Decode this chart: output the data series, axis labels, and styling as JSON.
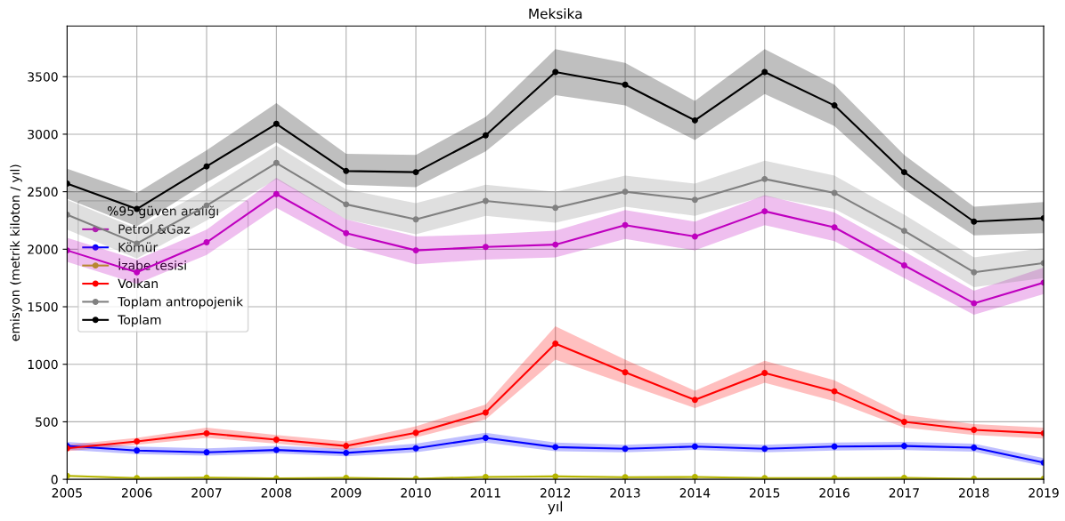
{
  "chart_data": {
    "type": "line",
    "title": "Meksika",
    "xlabel": "yıl",
    "ylabel": "emisyon (metrik kiloton / yıl)",
    "legend_title": "%95 güven aralığı",
    "x": [
      2005,
      2006,
      2007,
      2008,
      2009,
      2010,
      2011,
      2012,
      2013,
      2014,
      2015,
      2016,
      2017,
      2018,
      2019
    ],
    "series": [
      {
        "name": "Petrol &Gaz",
        "color": "#bf00bf",
        "values": [
          1990,
          1800,
          2060,
          2480,
          2140,
          1990,
          2020,
          2040,
          2210,
          2110,
          2330,
          2190,
          1860,
          1530,
          1710
        ],
        "lower": [
          1890,
          1700,
          1950,
          2360,
          2030,
          1870,
          1910,
          1930,
          2090,
          1990,
          2210,
          2070,
          1750,
          1430,
          1610
        ],
        "upper": [
          2100,
          1910,
          2170,
          2620,
          2260,
          2110,
          2130,
          2160,
          2340,
          2240,
          2470,
          2320,
          1980,
          1640,
          1840
        ]
      },
      {
        "name": "Kömür",
        "color": "#0000ff",
        "values": [
          290,
          250,
          235,
          255,
          230,
          270,
          360,
          280,
          265,
          285,
          265,
          285,
          290,
          275,
          145
        ],
        "lower": [
          255,
          220,
          205,
          225,
          200,
          235,
          320,
          245,
          235,
          255,
          235,
          250,
          255,
          240,
          115
        ],
        "upper": [
          325,
          285,
          270,
          290,
          265,
          310,
          405,
          320,
          300,
          320,
          300,
          320,
          325,
          310,
          185
        ]
      },
      {
        "name": "İzabe tesisi",
        "color": "#b5b500",
        "values": [
          30,
          10,
          15,
          8,
          12,
          5,
          20,
          25,
          18,
          20,
          10,
          10,
          12,
          5,
          5
        ],
        "lower": [
          22,
          4,
          8,
          2,
          5,
          0,
          12,
          17,
          10,
          12,
          4,
          4,
          5,
          0,
          0
        ],
        "upper": [
          40,
          18,
          24,
          15,
          20,
          12,
          30,
          35,
          27,
          30,
          18,
          18,
          20,
          12,
          12
        ]
      },
      {
        "name": "Volkan",
        "color": "#ff0000",
        "values": [
          270,
          330,
          400,
          345,
          290,
          405,
          580,
          1180,
          930,
          690,
          925,
          765,
          500,
          430,
          400
        ],
        "lower": [
          245,
          300,
          360,
          310,
          255,
          365,
          520,
          1040,
          830,
          620,
          840,
          680,
          450,
          385,
          355
        ],
        "upper": [
          300,
          360,
          450,
          385,
          330,
          460,
          650,
          1330,
          1040,
          770,
          1030,
          860,
          560,
          480,
          450
        ]
      },
      {
        "name": "Toplam antropojenik",
        "color": "#808080",
        "values": [
          2300,
          2050,
          2380,
          2750,
          2390,
          2260,
          2420,
          2360,
          2500,
          2430,
          2610,
          2490,
          2160,
          1800,
          1880
        ],
        "lower": [
          2170,
          1920,
          2250,
          2610,
          2260,
          2130,
          2290,
          2230,
          2370,
          2290,
          2460,
          2350,
          2030,
          1670,
          1750
        ],
        "upper": [
          2430,
          2180,
          2520,
          2900,
          2520,
          2400,
          2560,
          2500,
          2640,
          2570,
          2770,
          2640,
          2300,
          1930,
          2010
        ]
      },
      {
        "name": "Toplam",
        "color": "#000000",
        "values": [
          2570,
          2350,
          2720,
          3090,
          2680,
          2670,
          2990,
          3540,
          3430,
          3120,
          3540,
          3250,
          2670,
          2240,
          2270
        ],
        "lower": [
          2440,
          2200,
          2580,
          2930,
          2560,
          2540,
          2850,
          3340,
          3250,
          2950,
          3350,
          3070,
          2520,
          2120,
          2140
        ],
        "upper": [
          2700,
          2490,
          2860,
          3270,
          2830,
          2820,
          3150,
          3740,
          3620,
          3290,
          3740,
          3430,
          2820,
          2370,
          2410
        ]
      }
    ],
    "xlim": [
      2005,
      2019
    ],
    "xticks": [
      2005,
      2006,
      2007,
      2008,
      2009,
      2010,
      2011,
      2012,
      2013,
      2014,
      2015,
      2016,
      2017,
      2018,
      2019
    ],
    "ylim": [
      0,
      3940
    ],
    "yticks": [
      0,
      500,
      1000,
      1500,
      2000,
      2500,
      3000,
      3500
    ],
    "grid": true,
    "legend": "left",
    "marker": "circle",
    "line_style": "solid"
  }
}
